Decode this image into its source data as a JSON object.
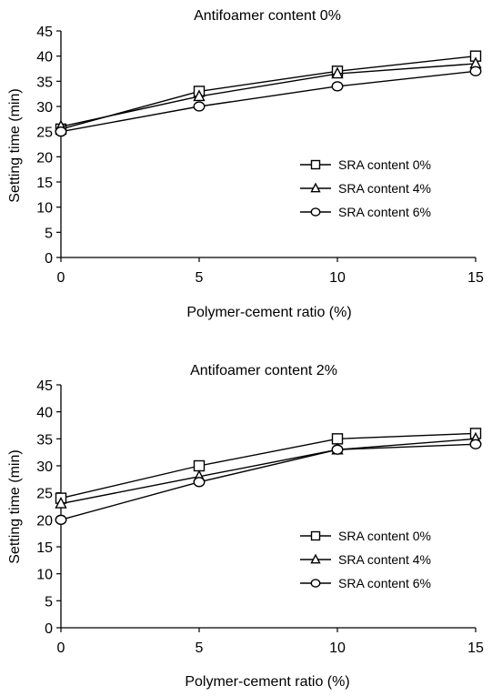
{
  "chart_data": [
    {
      "type": "line",
      "title": "Antifoamer content 0%",
      "xlabel": "Polymer-cement ratio (%)",
      "ylabel": "Setting time (min)",
      "x": [
        0,
        5,
        10,
        15
      ],
      "xticks": [
        0,
        5,
        10,
        15
      ],
      "yticks": [
        0,
        5,
        10,
        15,
        20,
        25,
        30,
        35,
        40,
        45
      ],
      "xlim": [
        0,
        15
      ],
      "ylim": [
        0,
        45
      ],
      "grid": false,
      "legend_position": "right",
      "series": [
        {
          "name": "SRA content 0%",
          "marker": "square",
          "values": [
            25.5,
            33,
            37,
            40
          ]
        },
        {
          "name": "SRA content 4%",
          "marker": "triangle",
          "values": [
            26,
            32,
            36.5,
            38.5
          ]
        },
        {
          "name": "SRA content 6%",
          "marker": "circle",
          "values": [
            25,
            30,
            34,
            37
          ]
        }
      ]
    },
    {
      "type": "line",
      "title": "Antifoamer content 2%",
      "xlabel": "Polymer-cement ratio (%)",
      "ylabel": "Setting time (min)",
      "x": [
        0,
        5,
        10,
        15
      ],
      "xticks": [
        0,
        5,
        10,
        15
      ],
      "yticks": [
        0,
        5,
        10,
        15,
        20,
        25,
        30,
        35,
        40,
        45
      ],
      "xlim": [
        0,
        15
      ],
      "ylim": [
        0,
        45
      ],
      "grid": false,
      "legend_position": "right",
      "series": [
        {
          "name": "SRA content 0%",
          "marker": "square",
          "values": [
            24,
            30,
            35,
            36
          ]
        },
        {
          "name": "SRA content 4%",
          "marker": "triangle",
          "values": [
            23,
            28,
            33,
            35
          ]
        },
        {
          "name": "SRA content 6%",
          "marker": "circle",
          "values": [
            20,
            27,
            33,
            34
          ]
        }
      ]
    }
  ]
}
